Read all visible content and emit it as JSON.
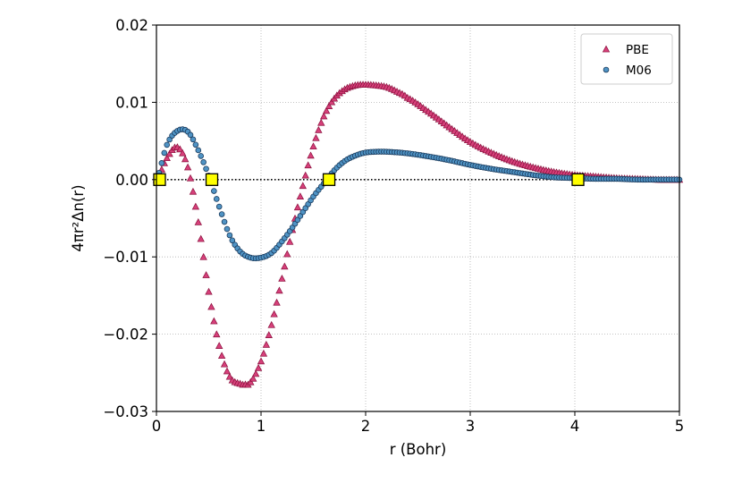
{
  "chart_data": {
    "type": "scatter",
    "xlabel": "r (Bohr)",
    "ylabel": "4πr²Δn(r)",
    "xlim": [
      0,
      5
    ],
    "ylim": [
      -0.03,
      0.02
    ],
    "xticks": [
      0,
      1,
      2,
      3,
      4,
      5
    ],
    "xtick_labels": [
      "0",
      "1",
      "2",
      "3",
      "4",
      "5"
    ],
    "yticks": [
      -0.03,
      -0.02,
      -0.01,
      0.0,
      0.01,
      0.02
    ],
    "ytick_labels": [
      "−0.03",
      "−0.02",
      "−0.01",
      "0.00",
      "0.01",
      "0.02"
    ],
    "grid": true,
    "legend_position": "top-right",
    "zero_line": {
      "y": 0,
      "style": "dotted",
      "color": "#000000"
    },
    "series": [
      {
        "name": "PBE",
        "marker": "triangle",
        "color": "#d6407a",
        "edge_color": "#8a0f3c",
        "x": [
          0.0,
          0.1,
          0.2,
          0.3,
          0.4,
          0.5,
          0.6,
          0.7,
          0.8,
          0.85,
          0.9,
          1.0,
          1.1,
          1.2,
          1.3,
          1.4,
          1.5,
          1.6,
          1.7,
          1.8,
          1.9,
          2.0,
          2.1,
          2.2,
          2.3,
          2.4,
          2.6,
          2.8,
          3.0,
          3.2,
          3.4,
          3.6,
          3.8,
          4.0,
          4.2,
          4.4,
          4.6,
          4.8,
          5.0
        ],
        "y": [
          0.0,
          0.0028,
          0.0042,
          0.0016,
          -0.0055,
          -0.0145,
          -0.0215,
          -0.0255,
          -0.0264,
          -0.0265,
          -0.0262,
          -0.0235,
          -0.0188,
          -0.0128,
          -0.0065,
          -0.0008,
          0.0043,
          0.0082,
          0.0105,
          0.0117,
          0.0122,
          0.0123,
          0.0122,
          0.012,
          0.0114,
          0.0106,
          0.0088,
          0.0068,
          0.0049,
          0.0035,
          0.0024,
          0.0016,
          0.001,
          0.0006,
          0.0004,
          0.0002,
          0.0001,
          0.0,
          0.0
        ]
      },
      {
        "name": "M06",
        "marker": "circle",
        "color": "#4f93c4",
        "edge_color": "#1a3a5c",
        "x": [
          0.0,
          0.1,
          0.2,
          0.3,
          0.4,
          0.5,
          0.6,
          0.7,
          0.8,
          0.9,
          1.0,
          1.1,
          1.2,
          1.3,
          1.4,
          1.5,
          1.6,
          1.7,
          1.8,
          1.9,
          2.0,
          2.1,
          2.2,
          2.4,
          2.6,
          2.8,
          3.0,
          3.2,
          3.4,
          3.6,
          3.8,
          4.0,
          4.2,
          4.4,
          4.6,
          4.8,
          5.0
        ],
        "y": [
          0.0,
          0.0045,
          0.0063,
          0.0062,
          0.0038,
          0.0005,
          -0.0035,
          -0.0072,
          -0.0093,
          -0.0101,
          -0.0101,
          -0.0095,
          -0.008,
          -0.0062,
          -0.0042,
          -0.0022,
          -0.0005,
          0.0012,
          0.0024,
          0.0031,
          0.0035,
          0.0036,
          0.0036,
          0.0034,
          0.003,
          0.0025,
          0.0019,
          0.0014,
          0.001,
          0.0006,
          0.0003,
          0.0002,
          0.0001,
          0.0001,
          0.0,
          0.0,
          0.0
        ]
      },
      {
        "marker": "square",
        "color": "#ffff00",
        "edge_color": "#000000",
        "x": [
          0.03,
          0.53,
          1.65,
          4.03
        ],
        "y": [
          0.0,
          0.0,
          0.0,
          0.0
        ]
      }
    ]
  }
}
